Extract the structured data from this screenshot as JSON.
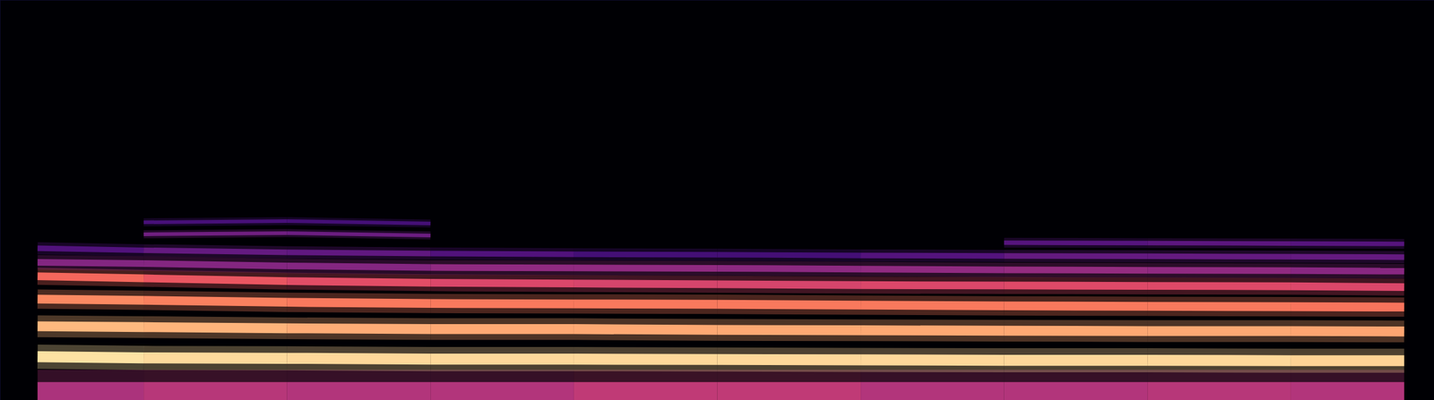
{
  "chart_data": {
    "type": "spectrogram",
    "tick_labels": false,
    "xlim": [
      0,
      100
    ],
    "ylim": [
      0,
      100
    ],
    "zlim": [
      0,
      1
    ],
    "color": "magma",
    "x": [
      2.6,
      10,
      20,
      30,
      40,
      50,
      60,
      70,
      80,
      90,
      97.9
    ],
    "series": [
      {
        "values": [
          2,
          2,
          2,
          2,
          2,
          2,
          2,
          2,
          2,
          2,
          2
        ],
        "levels": [
          0.45,
          0.5,
          0.5,
          0.48,
          0.5,
          0.55,
          0.5,
          0.48,
          0.5,
          0.5,
          0.48
        ]
      },
      {
        "values": [
          10.9,
          10.6,
          10.5,
          10.3,
          10.3,
          10.2,
          10.1,
          10.0,
          10.0,
          9.9,
          9.9
        ],
        "levels": [
          0.95,
          0.93,
          0.92,
          0.92,
          0.92,
          0.92,
          0.92,
          0.92,
          0.92,
          0.92,
          0.9
        ]
      },
      {
        "values": [
          18.5,
          18.3,
          18.0,
          17.8,
          17.8,
          17.6,
          17.5,
          17.4,
          17.3,
          17.3,
          17.2
        ],
        "levels": [
          0.86,
          0.85,
          0.83,
          0.82,
          0.82,
          0.82,
          0.82,
          0.82,
          0.82,
          0.82,
          0.8
        ]
      },
      {
        "values": [
          25.3,
          25.0,
          24.5,
          24.2,
          24.1,
          24.0,
          23.8,
          23.6,
          23.5,
          23.4,
          23.3
        ],
        "levels": [
          0.76,
          0.75,
          0.72,
          0.72,
          0.72,
          0.72,
          0.72,
          0.72,
          0.72,
          0.72,
          0.7
        ]
      },
      {
        "values": [
          31.0,
          30.5,
          29.8,
          29.4,
          29.2,
          29.0,
          28.8,
          28.7,
          28.6,
          28.5,
          28.3
        ],
        "levels": [
          0.7,
          0.66,
          0.62,
          0.6,
          0.58,
          0.58,
          0.58,
          0.6,
          0.6,
          0.6,
          0.58
        ]
      },
      {
        "values": [
          34.5,
          34.2,
          33.6,
          33.2,
          33.1,
          33.0,
          32.8,
          32.6,
          32.5,
          32.4,
          32.3
        ],
        "levels": [
          0.35,
          0.4,
          0.36,
          0.4,
          0.42,
          0.4,
          0.4,
          0.42,
          0.42,
          0.4,
          0.38
        ]
      },
      {
        "values": [
          38.0,
          37.5,
          37.0,
          36.7,
          36.5,
          36.4,
          36.2,
          36.1,
          36.0,
          35.9,
          35.8
        ],
        "levels": [
          0.2,
          0.3,
          0.3,
          0.28,
          0.22,
          0.22,
          0.22,
          0.3,
          0.3,
          0.3,
          0.3
        ]
      },
      {
        "values": [
          null,
          null,
          null,
          null,
          null,
          null,
          null,
          39.4,
          39.3,
          39.2,
          39.1
        ],
        "levels": [
          null,
          null,
          null,
          null,
          null,
          null,
          null,
          0.25,
          0.28,
          0.28,
          0.25
        ]
      },
      {
        "values": [
          null,
          41.5,
          41.8,
          41.2,
          null,
          null,
          null,
          null,
          null,
          null,
          null
        ],
        "levels": [
          null,
          0.32,
          0.34,
          0.3,
          null,
          null,
          null,
          null,
          null,
          null,
          null
        ]
      },
      {
        "values": [
          null,
          44.5,
          44.8,
          44.2,
          null,
          null,
          null,
          null,
          null,
          null,
          null
        ],
        "levels": [
          null,
          0.22,
          0.24,
          0.2,
          null,
          null,
          null,
          null,
          null,
          null,
          null
        ]
      }
    ]
  }
}
